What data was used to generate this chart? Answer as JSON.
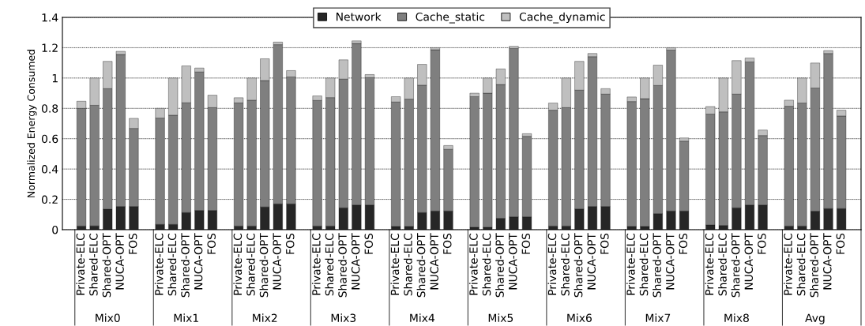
{
  "chart_data": {
    "type": "bar",
    "stacked": true,
    "ylabel": "Normalized Energy Consumed",
    "categories": [
      "Private-ELC",
      "Shared-ELC",
      "Shared-OPT",
      "NUCA-OPT",
      "FOS",
      "Private-ELC",
      "Shared-ELC",
      "Shared-OPT",
      "NUCA-OPT",
      "FOS",
      "Private-ELC",
      "Shared-ELC",
      "Shared-OPT",
      "NUCA-OPT",
      "FOS",
      "Private-ELC",
      "Shared-ELC",
      "Shared-OPT",
      "NUCA-OPT",
      "FOS",
      "Private-ELC",
      "Shared-ELC",
      "Shared-OPT",
      "NUCA-OPT",
      "FOS",
      "Private-ELC",
      "Shared-ELC",
      "Shared-OPT",
      "NUCA-OPT",
      "FOS",
      "Private-ELC",
      "Shared-ELC",
      "Shared-OPT",
      "NUCA-OPT",
      "FOS",
      "Private-ELC",
      "Shared-ELC",
      "Shared-OPT",
      "NUCA-OPT",
      "FOS",
      "Private-ELC",
      "Shared-ELC",
      "Shared-OPT",
      "NUCA-OPT",
      "FOS",
      "Private-ELC",
      "Shared-ELC",
      "Shared-OPT",
      "NUCA-OPT",
      "FOS"
    ],
    "series": [
      {
        "name": "Network",
        "color": "#262626",
        "values": [
          0.024,
          0.025,
          0.136,
          0.153,
          0.153,
          0.035,
          0.035,
          0.113,
          0.127,
          0.127,
          0.024,
          0.024,
          0.15,
          0.17,
          0.17,
          0.024,
          0.024,
          0.144,
          0.163,
          0.163,
          0.021,
          0.021,
          0.113,
          0.123,
          0.123,
          0.016,
          0.016,
          0.075,
          0.085,
          0.085,
          0.024,
          0.024,
          0.137,
          0.153,
          0.153,
          0.021,
          0.021,
          0.106,
          0.123,
          0.123,
          0.031,
          0.028,
          0.144,
          0.163,
          0.163,
          0.024,
          0.024,
          0.122,
          0.139,
          0.139
        ]
      },
      {
        "name": "Cache_static",
        "color": "#7f7f7f",
        "values": [
          0.776,
          0.795,
          0.794,
          1.002,
          0.515,
          0.701,
          0.72,
          0.724,
          0.913,
          0.678,
          0.812,
          0.83,
          0.833,
          1.05,
          0.837,
          0.828,
          0.847,
          0.849,
          1.065,
          0.839,
          0.821,
          0.84,
          0.84,
          1.063,
          0.407,
          0.861,
          0.884,
          0.882,
          1.11,
          0.531,
          0.764,
          0.781,
          0.783,
          0.988,
          0.741,
          0.824,
          0.843,
          0.845,
          1.061,
          0.461,
          0.731,
          0.749,
          0.75,
          0.943,
          0.458,
          0.79,
          0.811,
          0.812,
          1.023,
          0.611
        ]
      },
      {
        "name": "Cache_dynamic",
        "color": "#bfbfbf",
        "values": [
          0.047,
          0.18,
          0.18,
          0.021,
          0.066,
          0.064,
          0.245,
          0.243,
          0.026,
          0.082,
          0.034,
          0.146,
          0.144,
          0.017,
          0.042,
          0.03,
          0.129,
          0.127,
          0.017,
          0.021,
          0.035,
          0.139,
          0.137,
          0.014,
          0.025,
          0.023,
          0.1,
          0.103,
          0.014,
          0.017,
          0.047,
          0.195,
          0.19,
          0.021,
          0.036,
          0.03,
          0.136,
          0.134,
          0.016,
          0.021,
          0.05,
          0.223,
          0.221,
          0.026,
          0.036,
          0.04,
          0.165,
          0.165,
          0.019,
          0.038
        ]
      }
    ],
    "annotations": [
      "Mix0",
      "Mix1",
      "Mix2",
      "Mix3",
      "Mix4",
      "Mix5",
      "Mix6",
      "Mix7",
      "Mix8",
      "Avg"
    ],
    "ylim": [
      0,
      1.4
    ],
    "yticks": [
      0,
      0.2,
      0.4,
      0.6,
      0.8,
      1,
      1.2,
      1.4
    ],
    "grid": "y",
    "legend": "top"
  }
}
